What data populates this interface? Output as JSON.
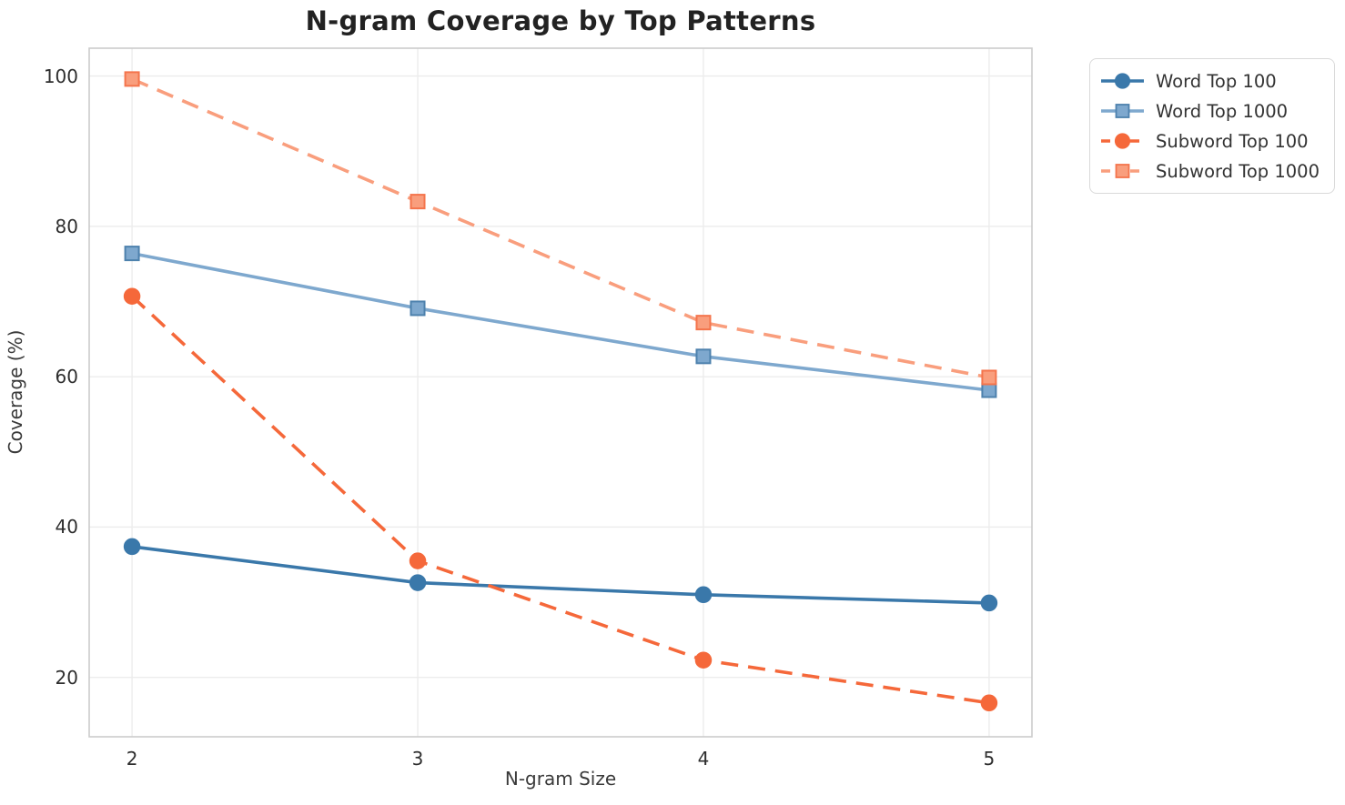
{
  "chart_data": {
    "type": "line",
    "title": "N-gram Coverage by Top Patterns",
    "xlabel": "N-gram Size",
    "ylabel": "Coverage (%)",
    "x": [
      2,
      3,
      4,
      5
    ],
    "xticks": [
      2,
      3,
      4,
      5
    ],
    "yticks": [
      20,
      40,
      60,
      80,
      100
    ],
    "xlim": [
      1.85,
      5.15
    ],
    "ylim": [
      12.1,
      103.7
    ],
    "grid": true,
    "legend_position": "outside-right",
    "colors": {
      "grid": "#ececec",
      "spine": "#cccccc",
      "title_text": "#222222",
      "tick_text": "#2e2e2e",
      "axis_label_text": "#3a3a3a",
      "legend_text": "#333333"
    },
    "series": [
      {
        "name": "Word Top 100",
        "values": [
          37.4,
          32.6,
          31.0,
          29.9
        ],
        "color": "#3a78aa",
        "edge": "#3a78aa",
        "style": "solid",
        "marker": "circle"
      },
      {
        "name": "Word Top 1000",
        "values": [
          76.4,
          69.1,
          62.7,
          58.2
        ],
        "color": "#7ea8ce",
        "edge": "#4d81ad",
        "style": "solid",
        "marker": "square"
      },
      {
        "name": "Subword Top 100",
        "values": [
          70.7,
          35.5,
          22.3,
          16.6
        ],
        "color": "#f5683a",
        "edge": "#f5683a",
        "style": "dashed",
        "marker": "circle"
      },
      {
        "name": "Subword Top 1000",
        "values": [
          99.6,
          83.3,
          67.2,
          59.9
        ],
        "color": "#f99e7d",
        "edge": "#f4744c",
        "style": "dashed",
        "marker": "square"
      }
    ]
  }
}
